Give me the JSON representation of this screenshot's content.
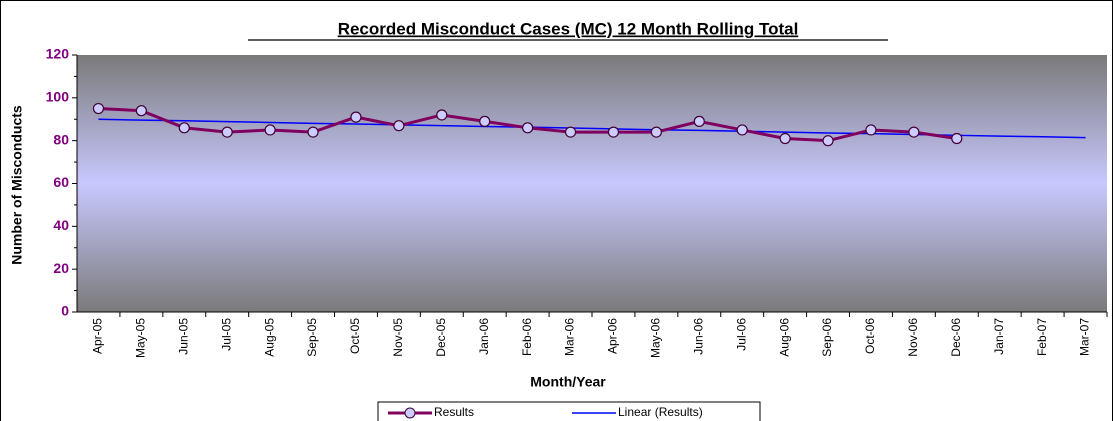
{
  "chart_data": {
    "type": "line",
    "title": "Recorded Misconduct Cases (MC) 12 Month Rolling Total",
    "x_label": "Month/Year",
    "y_label": "Number of Misconducts",
    "categories": [
      "Apr-05",
      "May-05",
      "Jun-05",
      "Jul-05",
      "Aug-05",
      "Sep-05",
      "Oct-05",
      "Nov-05",
      "Dec-05",
      "Jan-06",
      "Feb-06",
      "Mar-06",
      "Apr-06",
      "May-06",
      "Jun-06",
      "Jul-06",
      "Aug-06",
      "Sep-06",
      "Oct-06",
      "Nov-06",
      "Dec-06",
      "Jan-07",
      "Feb-07",
      "Mar-07"
    ],
    "series": [
      {
        "name": "Results",
        "color": "#800060",
        "marker": true,
        "values": [
          95,
          94,
          86,
          84,
          85,
          84,
          91,
          87,
          92,
          89,
          86,
          84,
          84,
          84,
          89,
          85,
          81,
          80,
          85,
          84,
          81,
          null,
          null,
          null
        ]
      },
      {
        "name": "Linear (Results)",
        "color": "#0000ff",
        "marker": false,
        "values": [
          90,
          89.6,
          89.3,
          88.9,
          88.5,
          88.1,
          87.8,
          87.4,
          87.0,
          86.6,
          86.3,
          85.9,
          85.5,
          85.1,
          84.8,
          84.4,
          84.0,
          83.6,
          83.3,
          82.9,
          82.5,
          82.1,
          81.8,
          81.4
        ]
      }
    ],
    "ylim": [
      0,
      120
    ],
    "yticks": [
      0,
      20,
      40,
      60,
      80,
      100,
      120
    ],
    "legend": "bottom"
  }
}
